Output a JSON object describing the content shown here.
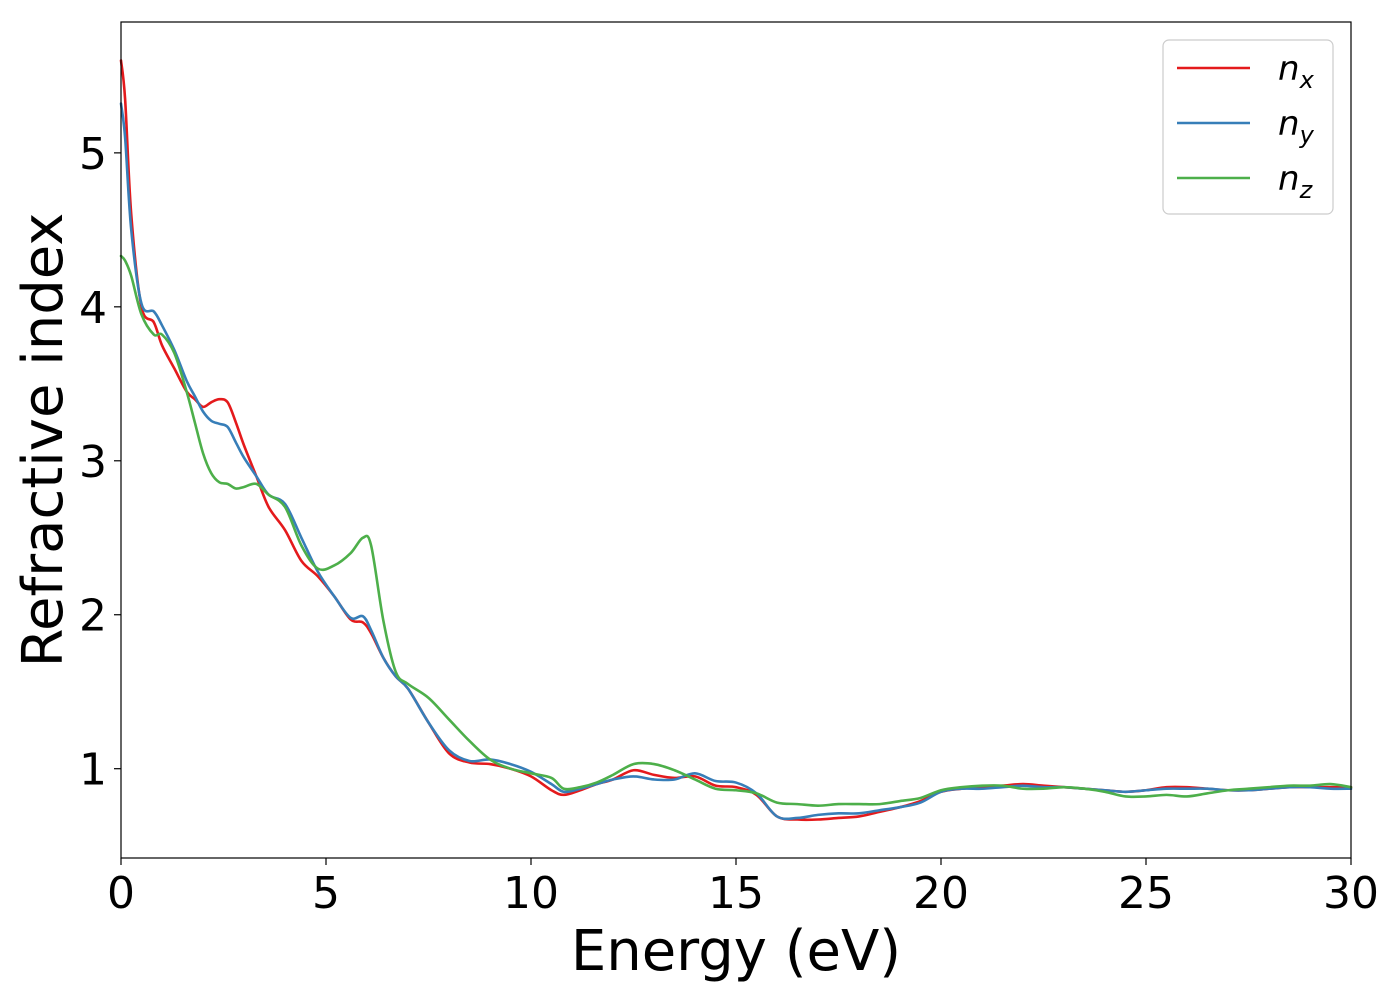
{
  "chart_data": {
    "type": "line",
    "title": "",
    "xlabel": "Energy (eV)",
    "ylabel": "Refractive index",
    "xlim": [
      0,
      30
    ],
    "ylim": [
      0.42,
      5.85
    ],
    "xticks": [
      "0",
      "5",
      "10",
      "15",
      "20",
      "25",
      "30"
    ],
    "yticks": [
      "1",
      "2",
      "3",
      "4",
      "5"
    ],
    "grid": false,
    "legend_position": "top-right",
    "series": [
      {
        "name": "n",
        "subscript": "x",
        "color": "#e41a1c",
        "x": [
          0,
          0.1,
          0.25,
          0.5,
          0.8,
          1.0,
          1.3,
          1.6,
          1.8,
          2.0,
          2.2,
          2.4,
          2.6,
          2.8,
          3.0,
          3.3,
          3.6,
          4.0,
          4.4,
          4.8,
          5.2,
          5.6,
          5.9,
          6.1,
          6.4,
          6.7,
          7.0,
          7.5,
          8.0,
          8.5,
          9.0,
          9.5,
          10.0,
          10.5,
          10.8,
          11.2,
          11.6,
          12.0,
          12.5,
          13.0,
          13.5,
          14.0,
          14.5,
          15.0,
          15.5,
          16.0,
          16.5,
          17.0,
          17.5,
          18.0,
          18.5,
          19.0,
          19.5,
          20.0,
          20.5,
          21.0,
          21.5,
          22.0,
          22.5,
          23.0,
          23.5,
          24.0,
          24.5,
          25.0,
          25.5,
          26.0,
          26.5,
          27.0,
          27.5,
          28.0,
          28.5,
          29.0,
          29.5,
          30.0
        ],
        "values": [
          5.6,
          5.35,
          4.6,
          4.0,
          3.9,
          3.75,
          3.6,
          3.45,
          3.4,
          3.35,
          3.38,
          3.4,
          3.38,
          3.25,
          3.1,
          2.9,
          2.7,
          2.55,
          2.35,
          2.25,
          2.12,
          1.97,
          1.95,
          1.88,
          1.72,
          1.6,
          1.52,
          1.3,
          1.1,
          1.04,
          1.03,
          1.0,
          0.95,
          0.86,
          0.83,
          0.86,
          0.9,
          0.93,
          0.99,
          0.96,
          0.94,
          0.95,
          0.89,
          0.88,
          0.83,
          0.69,
          0.67,
          0.67,
          0.68,
          0.69,
          0.72,
          0.75,
          0.79,
          0.85,
          0.87,
          0.88,
          0.89,
          0.9,
          0.89,
          0.88,
          0.87,
          0.86,
          0.85,
          0.86,
          0.88,
          0.88,
          0.87,
          0.86,
          0.86,
          0.87,
          0.88,
          0.88,
          0.88,
          0.88
        ]
      },
      {
        "name": "n",
        "subscript": "y",
        "color": "#377eb8",
        "x": [
          0,
          0.1,
          0.25,
          0.5,
          0.8,
          1.0,
          1.3,
          1.6,
          1.8,
          2.0,
          2.2,
          2.4,
          2.6,
          2.8,
          3.0,
          3.3,
          3.6,
          4.0,
          4.4,
          4.8,
          5.2,
          5.6,
          5.9,
          6.1,
          6.4,
          6.7,
          7.0,
          7.5,
          8.0,
          8.5,
          9.0,
          9.5,
          10.0,
          10.5,
          10.8,
          11.2,
          11.6,
          12.0,
          12.5,
          13.0,
          13.5,
          14.0,
          14.5,
          15.0,
          15.5,
          16.0,
          16.5,
          17.0,
          17.5,
          18.0,
          18.5,
          19.0,
          19.5,
          20.0,
          20.5,
          21.0,
          21.5,
          22.0,
          22.5,
          23.0,
          23.5,
          24.0,
          24.5,
          25.0,
          25.5,
          26.0,
          26.5,
          27.0,
          27.5,
          28.0,
          28.5,
          29.0,
          29.5,
          30.0
        ],
        "values": [
          5.32,
          5.1,
          4.5,
          4.02,
          3.97,
          3.88,
          3.72,
          3.52,
          3.42,
          3.32,
          3.26,
          3.24,
          3.22,
          3.12,
          3.02,
          2.9,
          2.78,
          2.72,
          2.5,
          2.28,
          2.12,
          1.98,
          1.99,
          1.9,
          1.72,
          1.6,
          1.52,
          1.3,
          1.12,
          1.05,
          1.06,
          1.03,
          0.98,
          0.9,
          0.85,
          0.87,
          0.9,
          0.93,
          0.95,
          0.93,
          0.93,
          0.97,
          0.92,
          0.91,
          0.84,
          0.69,
          0.68,
          0.7,
          0.71,
          0.71,
          0.73,
          0.75,
          0.78,
          0.85,
          0.87,
          0.87,
          0.88,
          0.89,
          0.88,
          0.88,
          0.87,
          0.86,
          0.85,
          0.86,
          0.87,
          0.87,
          0.87,
          0.86,
          0.86,
          0.87,
          0.88,
          0.88,
          0.87,
          0.87
        ]
      },
      {
        "name": "n",
        "subscript": "z",
        "color": "#4daf4a",
        "x": [
          0,
          0.1,
          0.25,
          0.5,
          0.8,
          1.0,
          1.3,
          1.6,
          1.8,
          2.0,
          2.2,
          2.4,
          2.6,
          2.8,
          3.0,
          3.3,
          3.6,
          4.0,
          4.4,
          4.8,
          5.2,
          5.6,
          5.9,
          6.1,
          6.4,
          6.7,
          7.0,
          7.5,
          8.0,
          8.5,
          9.0,
          9.5,
          10.0,
          10.5,
          10.8,
          11.2,
          11.6,
          12.0,
          12.5,
          13.0,
          13.5,
          14.0,
          14.5,
          15.0,
          15.5,
          16.0,
          16.5,
          17.0,
          17.5,
          18.0,
          18.5,
          19.0,
          19.5,
          20.0,
          20.5,
          21.0,
          21.5,
          22.0,
          22.5,
          23.0,
          23.5,
          24.0,
          24.5,
          25.0,
          25.5,
          26.0,
          26.5,
          27.0,
          27.5,
          28.0,
          28.5,
          29.0,
          29.5,
          30.0
        ],
        "values": [
          4.33,
          4.3,
          4.2,
          3.95,
          3.82,
          3.82,
          3.7,
          3.45,
          3.25,
          3.05,
          2.92,
          2.86,
          2.85,
          2.82,
          2.83,
          2.85,
          2.78,
          2.7,
          2.45,
          2.3,
          2.32,
          2.4,
          2.5,
          2.45,
          1.96,
          1.63,
          1.55,
          1.46,
          1.32,
          1.18,
          1.06,
          1.0,
          0.97,
          0.94,
          0.87,
          0.88,
          0.91,
          0.96,
          1.03,
          1.03,
          0.99,
          0.93,
          0.87,
          0.86,
          0.84,
          0.78,
          0.77,
          0.76,
          0.77,
          0.77,
          0.77,
          0.79,
          0.81,
          0.86,
          0.88,
          0.89,
          0.89,
          0.87,
          0.87,
          0.88,
          0.87,
          0.85,
          0.82,
          0.82,
          0.83,
          0.82,
          0.84,
          0.86,
          0.87,
          0.88,
          0.89,
          0.89,
          0.9,
          0.88
        ]
      }
    ]
  }
}
